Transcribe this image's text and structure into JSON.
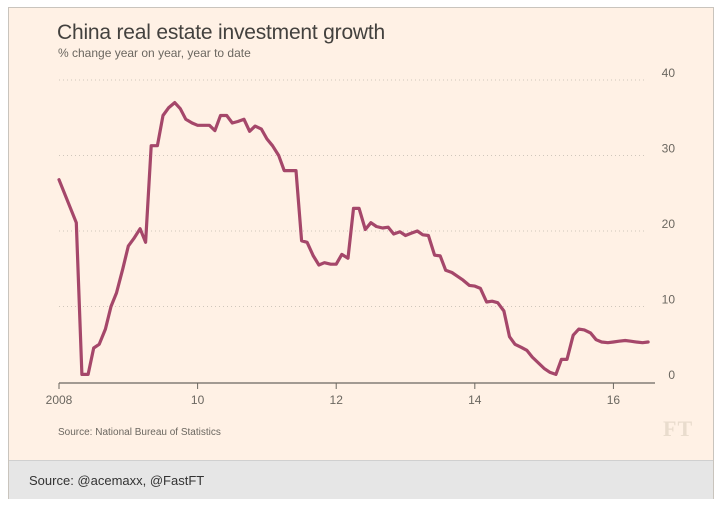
{
  "chart_data": {
    "type": "line",
    "title": "China real estate investment growth",
    "subtitle": "% change year on year, year to date",
    "xlabel": "",
    "ylabel": "",
    "ylim": [
      0,
      40
    ],
    "yticks": [
      0,
      10,
      20,
      30,
      40
    ],
    "xlim": [
      2008,
      2016.6
    ],
    "xticks": [
      {
        "value": 2008,
        "label": "2008"
      },
      {
        "value": 2010,
        "label": "10"
      },
      {
        "value": 2012,
        "label": "12"
      },
      {
        "value": 2014,
        "label": "14"
      },
      {
        "value": 2016,
        "label": "16"
      }
    ],
    "grid": true,
    "series": [
      {
        "color": "#a5476a",
        "x": [
          2008.0,
          2008.25,
          2008.33,
          2008.42,
          2008.5,
          2008.58,
          2008.67,
          2008.75,
          2008.83,
          2008.92,
          2009.0,
          2009.08,
          2009.17,
          2009.25,
          2009.33,
          2009.42,
          2009.5,
          2009.58,
          2009.67,
          2009.75,
          2009.83,
          2009.92,
          2010.0,
          2010.08,
          2010.17,
          2010.25,
          2010.33,
          2010.42,
          2010.5,
          2010.58,
          2010.67,
          2010.75,
          2010.83,
          2010.92,
          2011.0,
          2011.08,
          2011.17,
          2011.25,
          2011.33,
          2011.42,
          2011.5,
          2011.58,
          2011.67,
          2011.75,
          2011.83,
          2011.92,
          2012.0,
          2012.08,
          2012.17,
          2012.25,
          2012.33,
          2012.42,
          2012.5,
          2012.58,
          2012.67,
          2012.75,
          2012.83,
          2012.92,
          2013.0,
          2013.08,
          2013.17,
          2013.25,
          2013.33,
          2013.42,
          2013.5,
          2013.58,
          2013.67,
          2013.75,
          2013.83,
          2013.92,
          2014.0,
          2014.08,
          2014.17,
          2014.25,
          2014.33,
          2014.42,
          2014.5,
          2014.58,
          2014.67,
          2014.75,
          2014.83,
          2014.92,
          2015.0,
          2015.08,
          2015.17,
          2015.25,
          2015.33,
          2015.42,
          2015.5,
          2015.58,
          2015.67,
          2015.75,
          2015.83,
          2015.92,
          2016.0,
          2016.08,
          2016.17,
          2016.25,
          2016.33,
          2016.42,
          2016.5
        ],
        "y": [
          26.8,
          21.1,
          1.0,
          1.0,
          4.5,
          5.0,
          7.0,
          10.0,
          11.8,
          15.0,
          18.0,
          19.0,
          20.3,
          18.5,
          31.3,
          31.3,
          35.3,
          36.3,
          37.0,
          36.2,
          34.8,
          34.3,
          34.0,
          34.0,
          34.0,
          33.3,
          35.3,
          35.3,
          34.3,
          34.5,
          34.8,
          33.2,
          33.9,
          33.5,
          32.2,
          31.3,
          30.0,
          28.0,
          28.0,
          28.0,
          18.7,
          18.5,
          16.7,
          15.5,
          15.8,
          15.6,
          15.6,
          16.9,
          16.4,
          23.0,
          23.0,
          20.2,
          21.1,
          20.6,
          20.4,
          20.5,
          19.6,
          19.9,
          19.4,
          19.7,
          20.0,
          19.5,
          19.4,
          16.8,
          16.7,
          14.8,
          14.5,
          14.0,
          13.5,
          12.8,
          12.7,
          12.4,
          10.6,
          10.7,
          10.5,
          9.4,
          6.0,
          5.0,
          4.6,
          4.2,
          3.3,
          2.5,
          1.8,
          1.3,
          1.0,
          3.0,
          3.0,
          6.2,
          7.0,
          6.9,
          6.5,
          5.6,
          5.3,
          5.2,
          5.3,
          5.4,
          5.5,
          5.4,
          5.3,
          5.2,
          5.3
        ]
      }
    ]
  },
  "source_note": "Source: National Bureau of Statistics",
  "logo_text": "FT",
  "caption": "Source: @acemaxx, @FastFT"
}
